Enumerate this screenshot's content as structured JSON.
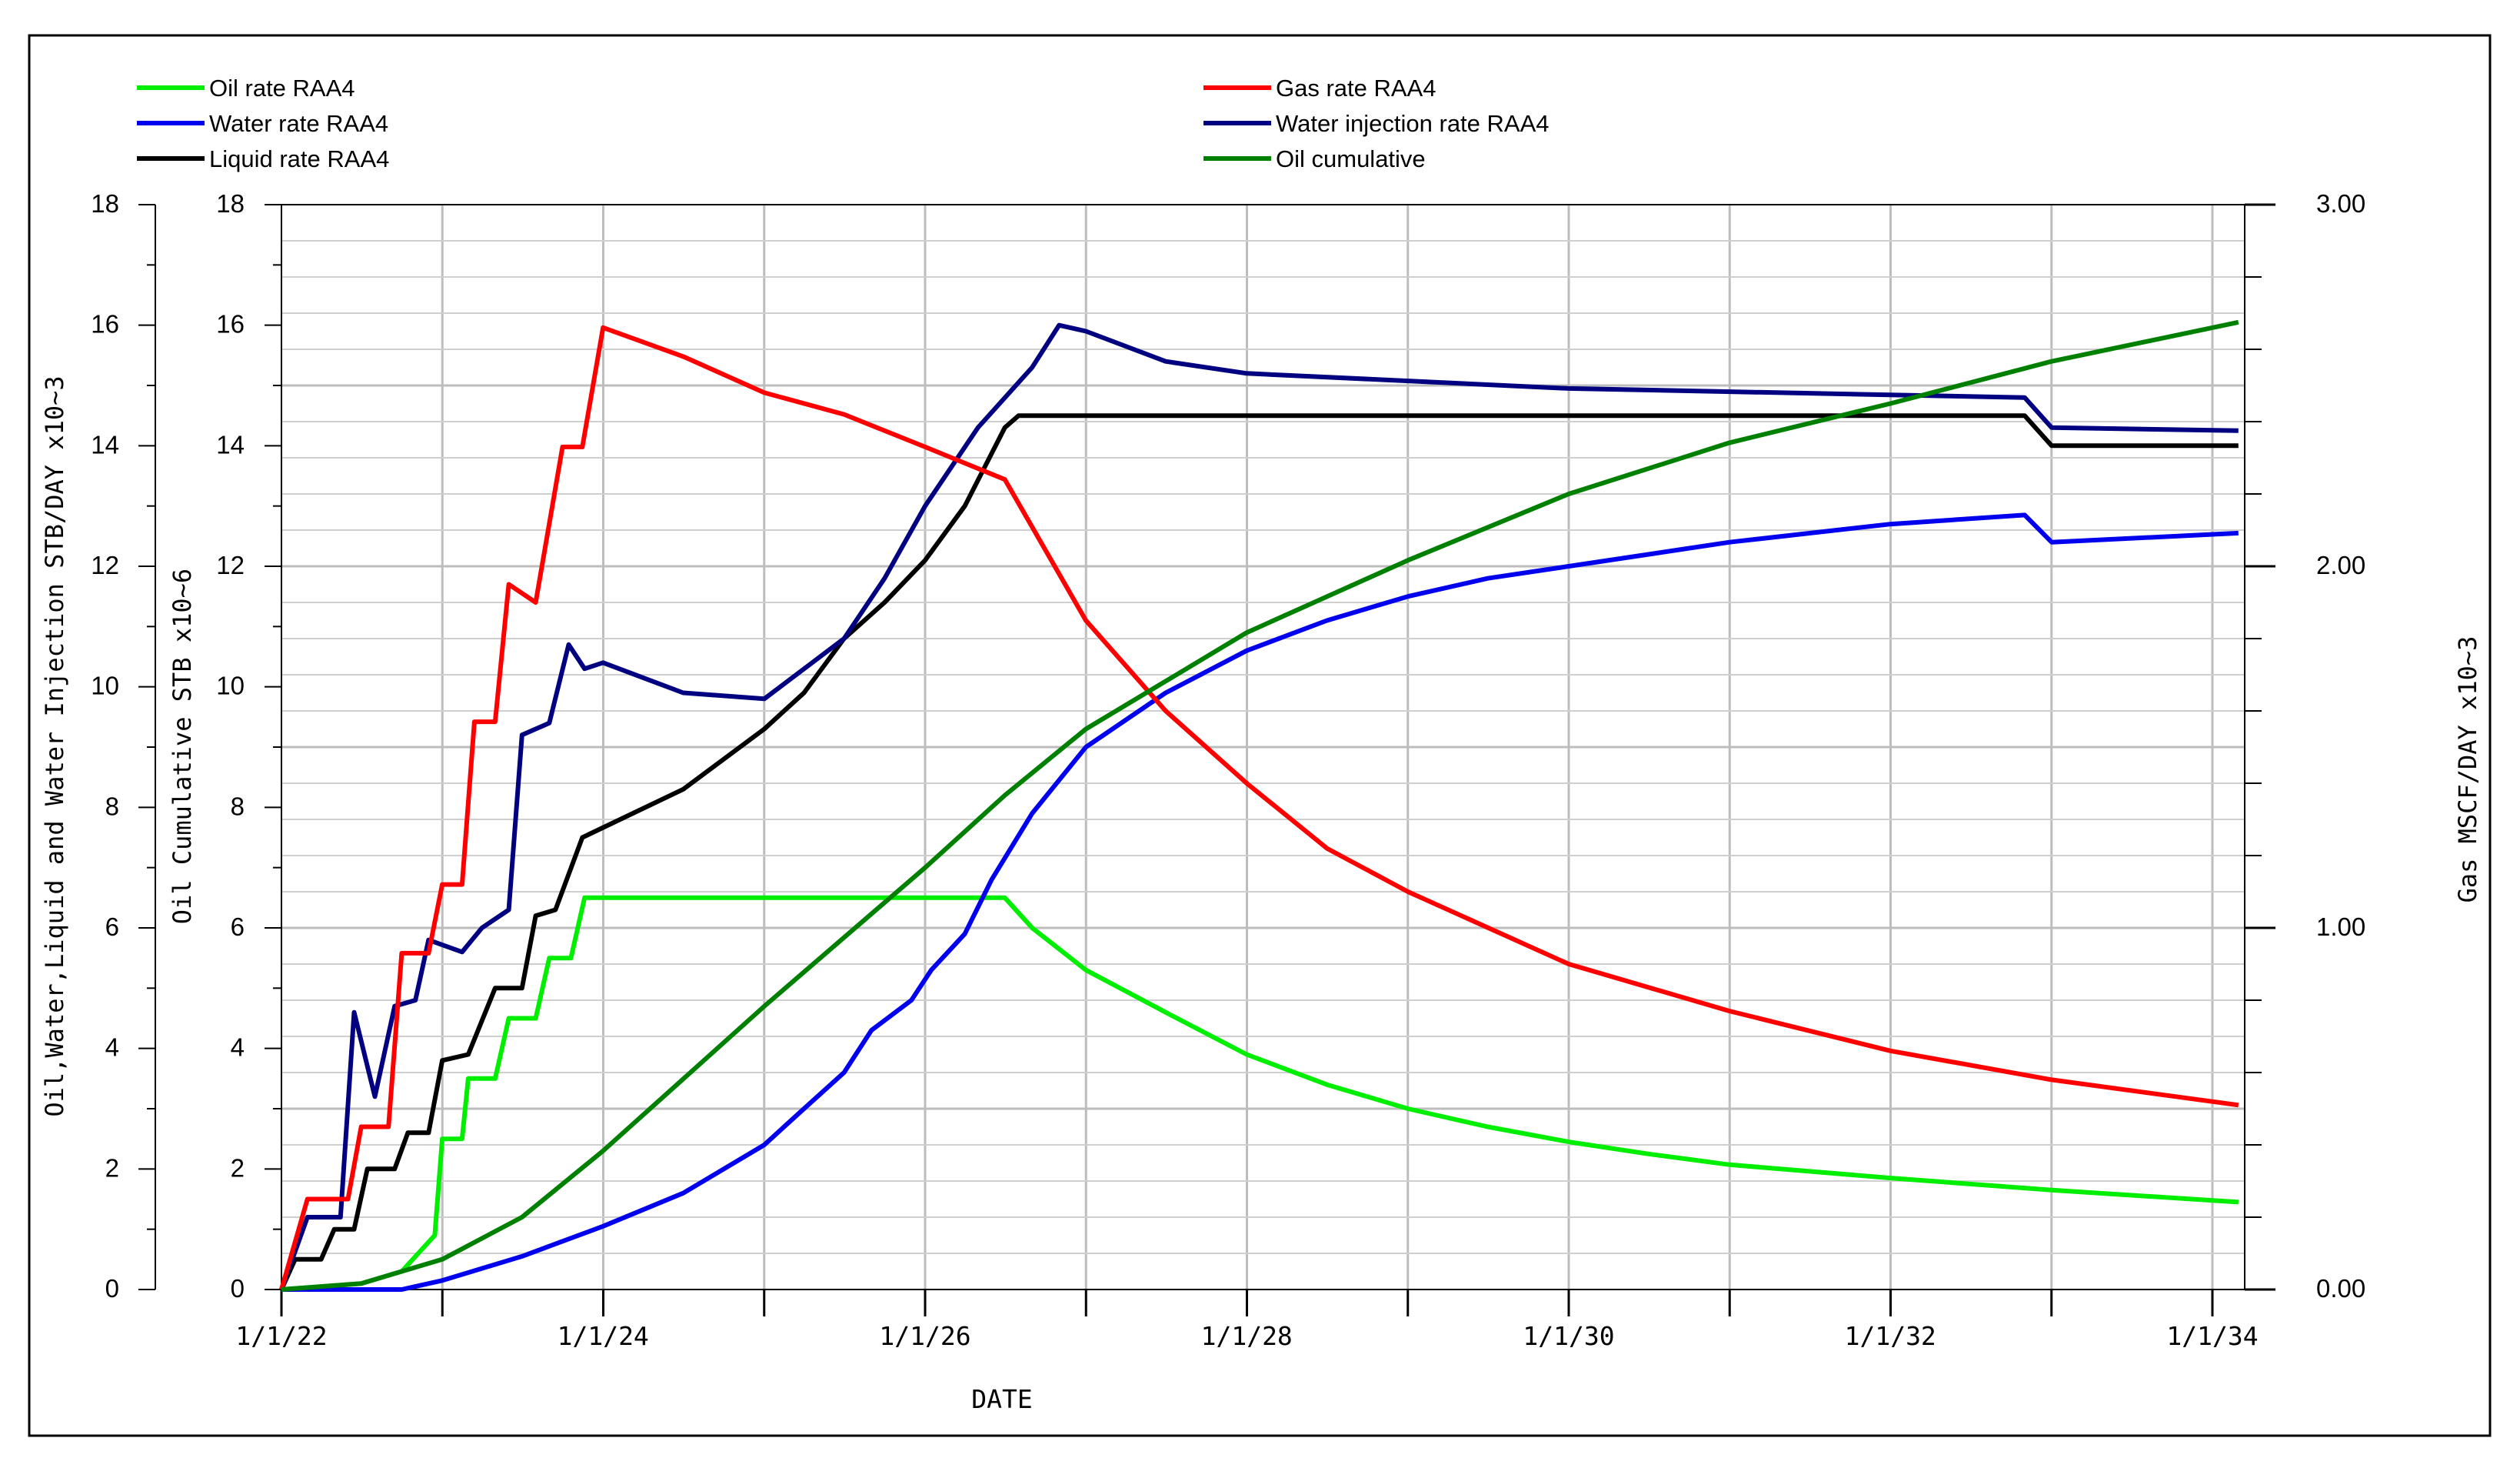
{
  "chart_data": {
    "type": "line",
    "x_axis": {
      "label": "DATE",
      "tick_labels": [
        "1/1/22",
        "1/1/24",
        "1/1/26",
        "1/1/28",
        "1/1/30",
        "1/1/32",
        "1/1/34"
      ],
      "range": [
        "2022-01-01",
        "2034-03-01"
      ]
    },
    "left_axis_rates": {
      "label": "Oil,Water,Liquid and Water Injection  STB/DAY  x10~3",
      "range": [
        0,
        18
      ],
      "tick_labels": [
        "0",
        "2",
        "4",
        "6",
        "8",
        "10",
        "12",
        "14",
        "16",
        "18"
      ]
    },
    "left_axis_cumulative": {
      "label": "Oil Cumulative STB  x10~6",
      "range": [
        0,
        18
      ],
      "tick_labels": [
        "0",
        "2",
        "4",
        "6",
        "8",
        "10",
        "12",
        "14",
        "16",
        "18"
      ]
    },
    "right_axis_gas": {
      "label": "Gas MSCF/DAY  x10~3",
      "range": [
        0,
        3
      ],
      "tick_labels": [
        "0.00",
        "1.00",
        "2.00",
        "3.00"
      ]
    },
    "grid": true,
    "legend_placement": "top",
    "series": [
      {
        "name": "Oil rate RAA4",
        "color": "#00ee00",
        "axis": "left_rates",
        "points": [
          [
            "2022-01-01",
            0
          ],
          [
            "2022-04-01",
            0.05
          ],
          [
            "2022-07-01",
            0.1
          ],
          [
            "2022-10-01",
            0.3
          ],
          [
            "2022-12-15",
            0.9
          ],
          [
            "2023-01-01",
            2.5
          ],
          [
            "2023-02-15",
            2.5
          ],
          [
            "2023-03-01",
            3.5
          ],
          [
            "2023-05-01",
            3.5
          ],
          [
            "2023-06-01",
            4.5
          ],
          [
            "2023-08-01",
            4.5
          ],
          [
            "2023-09-01",
            5.5
          ],
          [
            "2023-10-20",
            5.5
          ],
          [
            "2023-11-20",
            6.5
          ],
          [
            "2026-07-01",
            6.5
          ],
          [
            "2026-09-01",
            6.0
          ],
          [
            "2027-01-01",
            5.3
          ],
          [
            "2027-07-01",
            4.6
          ],
          [
            "2028-01-01",
            3.9
          ],
          [
            "2028-07-01",
            3.4
          ],
          [
            "2029-01-01",
            3.0
          ],
          [
            "2029-07-01",
            2.7
          ],
          [
            "2030-01-01",
            2.45
          ],
          [
            "2030-07-01",
            2.25
          ],
          [
            "2031-01-01",
            2.07
          ],
          [
            "2032-01-01",
            1.85
          ],
          [
            "2033-01-01",
            1.65
          ],
          [
            "2034-03-01",
            1.45
          ]
        ]
      },
      {
        "name": "Water rate RAA4",
        "color": "#0000ee",
        "axis": "left_rates",
        "points": [
          [
            "2022-01-01",
            0
          ],
          [
            "2022-10-01",
            0
          ],
          [
            "2022-11-01",
            0.05
          ],
          [
            "2023-01-01",
            0.15
          ],
          [
            "2023-04-01",
            0.35
          ],
          [
            "2023-07-01",
            0.55
          ],
          [
            "2023-10-01",
            0.8
          ],
          [
            "2024-01-01",
            1.05
          ],
          [
            "2024-07-01",
            1.6
          ],
          [
            "2025-01-01",
            2.4
          ],
          [
            "2025-04-01",
            3.0
          ],
          [
            "2025-07-01",
            3.6
          ],
          [
            "2025-09-01",
            4.3
          ],
          [
            "2025-12-01",
            4.8
          ],
          [
            "2026-01-15",
            5.3
          ],
          [
            "2026-04-01",
            5.9
          ],
          [
            "2026-06-01",
            6.8
          ],
          [
            "2026-09-01",
            7.9
          ],
          [
            "2027-01-01",
            9.0
          ],
          [
            "2027-07-01",
            9.9
          ],
          [
            "2028-01-01",
            10.6
          ],
          [
            "2028-07-01",
            11.1
          ],
          [
            "2029-01-01",
            11.5
          ],
          [
            "2029-07-01",
            11.8
          ],
          [
            "2030-01-01",
            12.0
          ],
          [
            "2031-01-01",
            12.4
          ],
          [
            "2032-01-01",
            12.7
          ],
          [
            "2032-11-01",
            12.85
          ],
          [
            "2033-01-01",
            12.4
          ],
          [
            "2034-03-01",
            12.55
          ]
        ]
      },
      {
        "name": "Liquid rate RAA4",
        "color": "#000000",
        "axis": "left_rates",
        "points": [
          [
            "2022-01-01",
            0
          ],
          [
            "2022-02-01",
            0.5
          ],
          [
            "2022-04-01",
            0.5
          ],
          [
            "2022-05-01",
            1.0
          ],
          [
            "2022-06-15",
            1.0
          ],
          [
            "2022-07-15",
            2.0
          ],
          [
            "2022-09-15",
            2.0
          ],
          [
            "2022-10-15",
            2.6
          ],
          [
            "2022-12-01",
            2.6
          ],
          [
            "2023-01-01",
            3.8
          ],
          [
            "2023-03-01",
            3.9
          ],
          [
            "2023-05-01",
            5.0
          ],
          [
            "2023-07-01",
            5.0
          ],
          [
            "2023-08-01",
            6.2
          ],
          [
            "2023-09-15",
            6.3
          ],
          [
            "2023-11-15",
            7.5
          ],
          [
            "2024-07-01",
            8.3
          ],
          [
            "2025-01-01",
            9.3
          ],
          [
            "2025-04-01",
            9.9
          ],
          [
            "2025-07-01",
            10.8
          ],
          [
            "2025-10-01",
            11.4
          ],
          [
            "2026-01-01",
            12.1
          ],
          [
            "2026-04-01",
            13.0
          ],
          [
            "2026-07-01",
            14.3
          ],
          [
            "2026-08-01",
            14.5
          ],
          [
            "2032-11-01",
            14.5
          ],
          [
            "2033-01-01",
            14.0
          ],
          [
            "2034-03-01",
            14.0
          ]
        ]
      },
      {
        "name": "Water injection rate RAA4",
        "color": "#000080",
        "axis": "left_rates",
        "points": [
          [
            "2022-01-01",
            0
          ],
          [
            "2022-03-01",
            1.2
          ],
          [
            "2022-05-15",
            1.2
          ],
          [
            "2022-06-15",
            4.6
          ],
          [
            "2022-08-01",
            3.2
          ],
          [
            "2022-09-15",
            4.7
          ],
          [
            "2022-11-01",
            4.8
          ],
          [
            "2022-12-01",
            5.8
          ],
          [
            "2023-02-15",
            5.6
          ],
          [
            "2023-04-01",
            6.0
          ],
          [
            "2023-06-01",
            6.3
          ],
          [
            "2023-07-01",
            9.2
          ],
          [
            "2023-09-01",
            9.4
          ],
          [
            "2023-10-15",
            10.7
          ],
          [
            "2023-11-20",
            10.3
          ],
          [
            "2024-01-01",
            10.4
          ],
          [
            "2024-07-01",
            9.9
          ],
          [
            "2025-01-01",
            9.8
          ],
          [
            "2025-07-01",
            10.8
          ],
          [
            "2025-10-01",
            11.8
          ],
          [
            "2026-01-01",
            13.0
          ],
          [
            "2026-05-01",
            14.3
          ],
          [
            "2026-09-01",
            15.3
          ],
          [
            "2026-11-01",
            16.0
          ],
          [
            "2027-01-01",
            15.9
          ],
          [
            "2027-07-01",
            15.4
          ],
          [
            "2028-01-01",
            15.2
          ],
          [
            "2030-01-01",
            14.95
          ],
          [
            "2032-11-01",
            14.8
          ],
          [
            "2033-01-01",
            14.3
          ],
          [
            "2034-03-01",
            14.25
          ]
        ]
      },
      {
        "name": "Gas rate RAA4",
        "color": "#ff0000",
        "axis": "right_gas",
        "points": [
          [
            "2022-01-01",
            0
          ],
          [
            "2022-03-01",
            0.25
          ],
          [
            "2022-06-01",
            0.25
          ],
          [
            "2022-07-01",
            0.45
          ],
          [
            "2022-09-01",
            0.45
          ],
          [
            "2022-10-01",
            0.93
          ],
          [
            "2022-12-01",
            0.93
          ],
          [
            "2023-01-01",
            1.12
          ],
          [
            "2023-02-15",
            1.12
          ],
          [
            "2023-03-15",
            1.57
          ],
          [
            "2023-05-01",
            1.57
          ],
          [
            "2023-06-01",
            1.95
          ],
          [
            "2023-08-01",
            1.9
          ],
          [
            "2023-10-01",
            2.33
          ],
          [
            "2023-11-15",
            2.33
          ],
          [
            "2024-01-01",
            2.66
          ],
          [
            "2024-07-01",
            2.58
          ],
          [
            "2025-01-01",
            2.48
          ],
          [
            "2025-07-01",
            2.42
          ],
          [
            "2026-01-01",
            2.33
          ],
          [
            "2026-07-01",
            2.24
          ],
          [
            "2027-01-01",
            1.85
          ],
          [
            "2027-07-01",
            1.6
          ],
          [
            "2028-01-01",
            1.4
          ],
          [
            "2028-07-01",
            1.22
          ],
          [
            "2029-01-01",
            1.1
          ],
          [
            "2030-01-01",
            0.9
          ],
          [
            "2031-01-01",
            0.77
          ],
          [
            "2032-01-01",
            0.66
          ],
          [
            "2033-01-01",
            0.58
          ],
          [
            "2034-03-01",
            0.51
          ]
        ]
      },
      {
        "name": "Oil cumulative",
        "color": "#008000",
        "axis": "left_cumulative",
        "points": [
          [
            "2022-01-01",
            0
          ],
          [
            "2022-07-01",
            0.1
          ],
          [
            "2023-01-01",
            0.5
          ],
          [
            "2023-07-01",
            1.2
          ],
          [
            "2024-01-01",
            2.3
          ],
          [
            "2025-01-01",
            4.7
          ],
          [
            "2026-01-01",
            7.0
          ],
          [
            "2026-07-01",
            8.2
          ],
          [
            "2027-01-01",
            9.3
          ],
          [
            "2028-01-01",
            10.9
          ],
          [
            "2029-01-01",
            12.1
          ],
          [
            "2030-01-01",
            13.2
          ],
          [
            "2031-01-01",
            14.05
          ],
          [
            "2032-01-01",
            14.7
          ],
          [
            "2033-01-01",
            15.4
          ],
          [
            "2034-03-01",
            16.05
          ]
        ]
      }
    ]
  }
}
